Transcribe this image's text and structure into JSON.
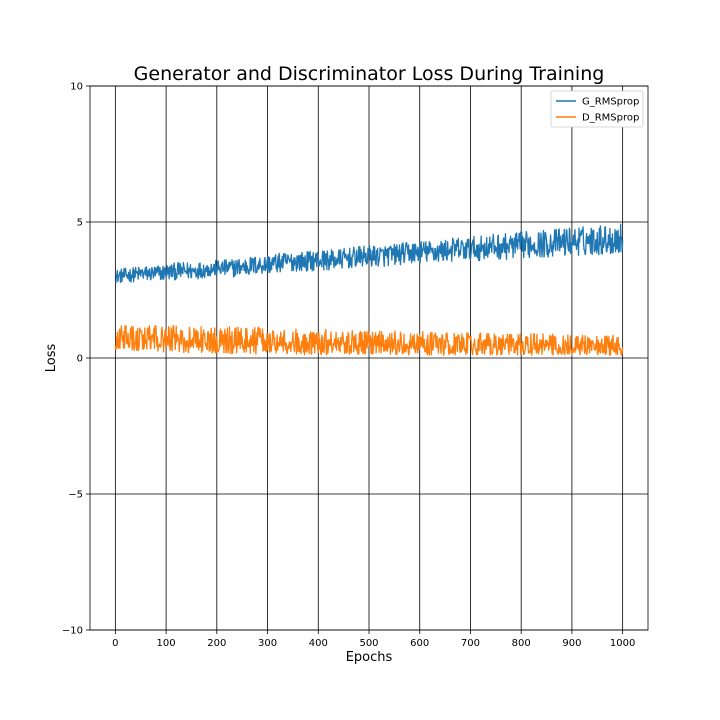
{
  "chart_data": {
    "type": "line",
    "title": "Generator and Discriminator Loss During Training",
    "xlabel": "Epochs",
    "ylabel": "Loss",
    "xlim": [
      -50,
      1050
    ],
    "ylim": [
      -10,
      10
    ],
    "xticks": [
      0,
      100,
      200,
      300,
      400,
      500,
      600,
      700,
      800,
      900,
      1000
    ],
    "yticks": [
      -10,
      -5,
      0,
      5,
      10
    ],
    "xtick_labels": [
      "0",
      "100",
      "200",
      "300",
      "400",
      "500",
      "600",
      "700",
      "800",
      "900",
      "1000"
    ],
    "ytick_labels": [
      "−10",
      "−5",
      "0",
      "5",
      "10"
    ],
    "grid": true,
    "legend_position": "top-right",
    "series": [
      {
        "name": "G_RMSprop",
        "color": "#1f77b4",
        "x": [
          0,
          25,
          50,
          75,
          100,
          125,
          150,
          175,
          200,
          225,
          250,
          275,
          300,
          325,
          350,
          375,
          400,
          425,
          450,
          475,
          500,
          525,
          550,
          575,
          600,
          625,
          650,
          675,
          700,
          725,
          750,
          775,
          800,
          825,
          850,
          875,
          900,
          925,
          950,
          975,
          1000
        ],
        "y": [
          3.0,
          3.05,
          3.1,
          3.1,
          3.15,
          3.2,
          3.2,
          3.25,
          3.3,
          3.3,
          3.35,
          3.4,
          3.45,
          3.5,
          3.55,
          3.55,
          3.6,
          3.6,
          3.65,
          3.7,
          3.75,
          3.75,
          3.8,
          3.85,
          3.9,
          3.9,
          3.95,
          4.0,
          4.0,
          4.05,
          4.1,
          4.1,
          4.15,
          4.2,
          4.2,
          4.25,
          4.3,
          4.3,
          4.35,
          4.35,
          4.4
        ],
        "noise": [
          0.25,
          0.27,
          0.28,
          0.3,
          0.3,
          0.32,
          0.33,
          0.3,
          0.3,
          0.33,
          0.35,
          0.35,
          0.36,
          0.36,
          0.36,
          0.37,
          0.37,
          0.38,
          0.38,
          0.39,
          0.39,
          0.4,
          0.4,
          0.41,
          0.42,
          0.42,
          0.43,
          0.44,
          0.45,
          0.46,
          0.47,
          0.48,
          0.49,
          0.5,
          0.51,
          0.52,
          0.53,
          0.54,
          0.55,
          0.56,
          0.57
        ]
      },
      {
        "name": "D_RMSprop",
        "color": "#ff7f0e",
        "x": [
          0,
          25,
          50,
          75,
          100,
          125,
          150,
          175,
          200,
          225,
          250,
          275,
          300,
          325,
          350,
          375,
          400,
          425,
          450,
          475,
          500,
          525,
          550,
          575,
          600,
          625,
          650,
          675,
          700,
          725,
          750,
          775,
          800,
          825,
          850,
          875,
          900,
          925,
          950,
          975,
          1000
        ],
        "y": [
          0.7,
          0.7,
          0.68,
          0.68,
          0.66,
          0.65,
          0.65,
          0.63,
          0.62,
          0.62,
          0.6,
          0.6,
          0.58,
          0.57,
          0.56,
          0.55,
          0.55,
          0.54,
          0.53,
          0.52,
          0.51,
          0.5,
          0.5,
          0.49,
          0.48,
          0.47,
          0.47,
          0.46,
          0.45,
          0.45,
          0.44,
          0.43,
          0.43,
          0.42,
          0.42,
          0.41,
          0.41,
          0.4,
          0.4,
          0.4,
          0.39
        ],
        "noise": [
          0.4,
          0.42,
          0.44,
          0.44,
          0.45,
          0.45,
          0.45,
          0.45,
          0.45,
          0.46,
          0.47,
          0.46,
          0.45,
          0.45,
          0.44,
          0.44,
          0.43,
          0.43,
          0.43,
          0.42,
          0.42,
          0.42,
          0.41,
          0.41,
          0.41,
          0.4,
          0.4,
          0.4,
          0.4,
          0.4,
          0.4,
          0.4,
          0.4,
          0.4,
          0.39,
          0.39,
          0.39,
          0.39,
          0.38,
          0.38,
          0.38
        ]
      }
    ]
  }
}
